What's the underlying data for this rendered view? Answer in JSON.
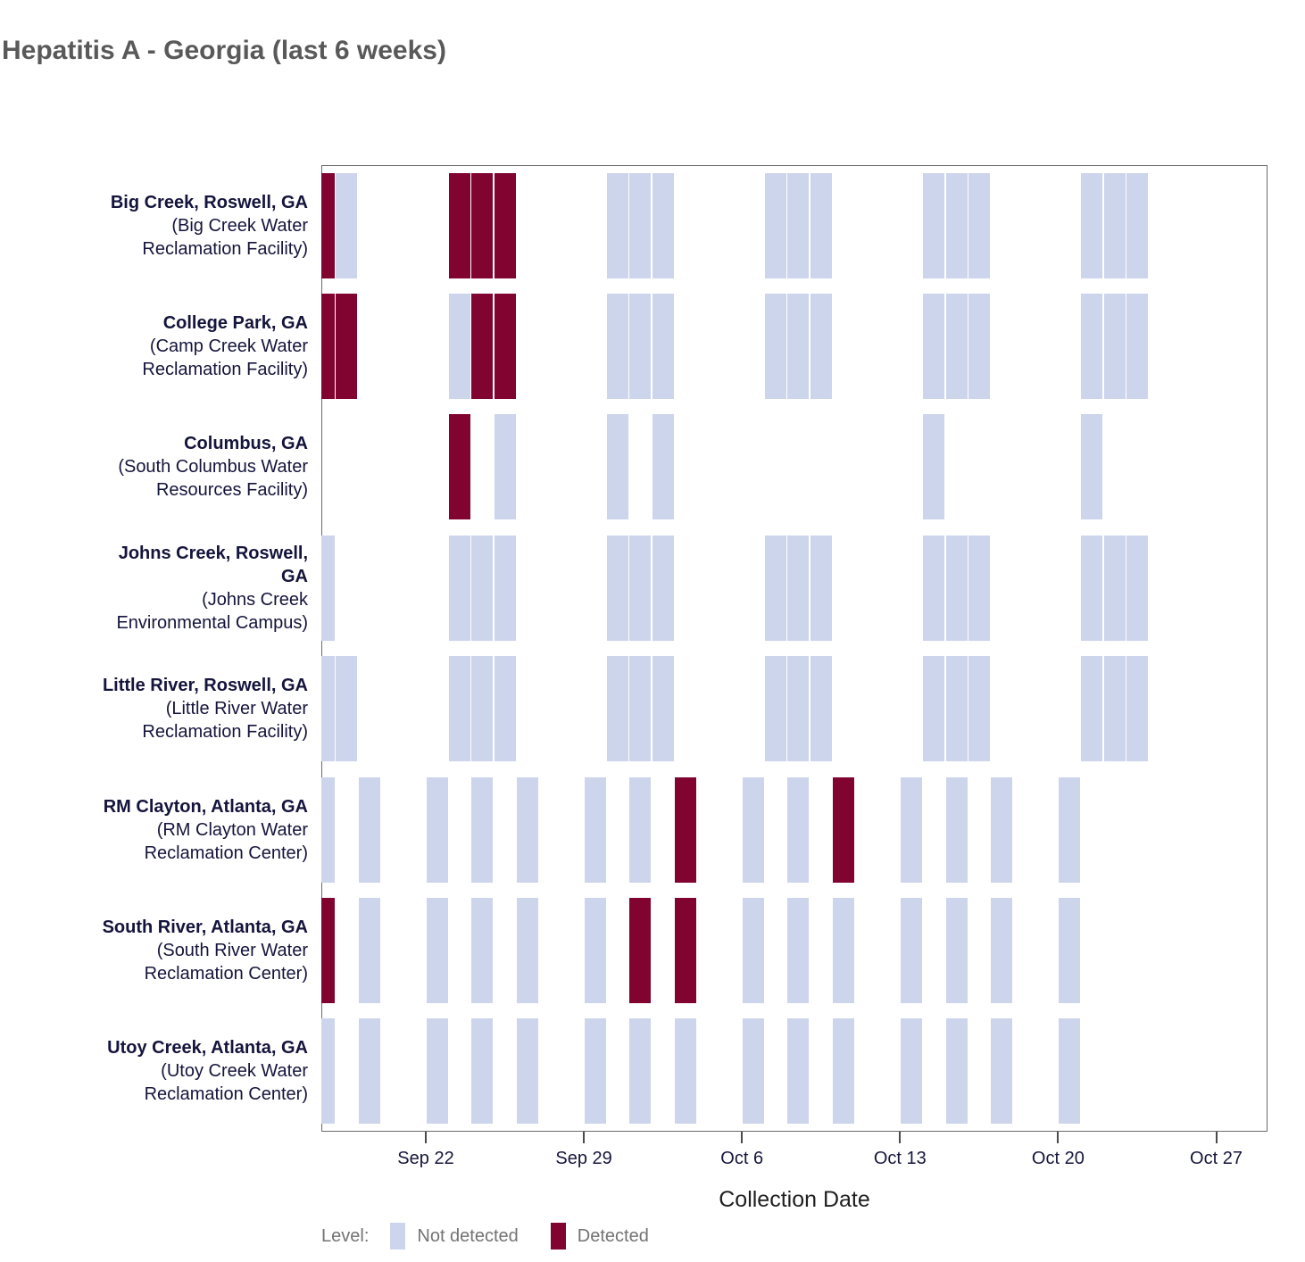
{
  "title": "Hepatitis A - Georgia (last 6 weeks)",
  "axis": {
    "x_title": "Collection Date",
    "x_ticks": [
      {
        "label": "Sep 22",
        "day": 0
      },
      {
        "label": "Sep 29",
        "day": 7
      },
      {
        "label": "Oct 6",
        "day": 14
      },
      {
        "label": "Oct 13",
        "day": 21
      },
      {
        "label": "Oct 20",
        "day": 28
      },
      {
        "label": "Oct 27",
        "day": 35
      }
    ]
  },
  "legend": {
    "label": "Level:",
    "items": [
      {
        "label": "Not detected",
        "key": "not_detected",
        "color": "#cdd5ec"
      },
      {
        "label": "Detected",
        "key": "detected",
        "color": "#800330"
      }
    ]
  },
  "colors": {
    "detected": "#800330",
    "not_detected": "#cdd5ec",
    "title_text": "#595959",
    "axis_text": "#16163c",
    "label_text": "#14143c",
    "legend_text": "#737373",
    "panel_border": "#6b6b6b"
  },
  "chart_data": {
    "type": "heatmap",
    "title": "Hepatitis A - Georgia (last 6 weeks)",
    "xlabel": "Collection Date",
    "x_tick_labels": [
      "Sep 22",
      "Sep 29",
      "Oct 6",
      "Oct 13",
      "Oct 20",
      "Oct 27"
    ],
    "x_range": [
      "Sep 17",
      "Oct 29"
    ],
    "legend_title": "Level:",
    "levels": [
      "Not detected",
      "Detected"
    ],
    "grid": false,
    "legend_position": "bottom",
    "facilities": [
      {
        "name": "Big Creek, Roswell, GA",
        "facility": "(Big Creek Water Reclamation Facility)",
        "name_lines": [
          "Big Creek, Roswell, GA"
        ],
        "facility_lines": [
          "(Big Creek Water",
          "Reclamation Facility)"
        ],
        "samples": [
          {
            "date": "Sep 17",
            "day": -5,
            "detected": true
          },
          {
            "date": "Sep 18",
            "day": -4,
            "detected": false
          },
          {
            "date": "Sep 23",
            "day": 1,
            "detected": true
          },
          {
            "date": "Sep 24",
            "day": 2,
            "detected": true
          },
          {
            "date": "Sep 25",
            "day": 3,
            "detected": true
          },
          {
            "date": "Sep 30",
            "day": 8,
            "detected": false
          },
          {
            "date": "Oct 1",
            "day": 9,
            "detected": false
          },
          {
            "date": "Oct 2",
            "day": 10,
            "detected": false
          },
          {
            "date": "Oct 7",
            "day": 15,
            "detected": false
          },
          {
            "date": "Oct 8",
            "day": 16,
            "detected": false
          },
          {
            "date": "Oct 9",
            "day": 17,
            "detected": false
          },
          {
            "date": "Oct 14",
            "day": 22,
            "detected": false
          },
          {
            "date": "Oct 15",
            "day": 23,
            "detected": false
          },
          {
            "date": "Oct 16",
            "day": 24,
            "detected": false
          },
          {
            "date": "Oct 21",
            "day": 29,
            "detected": false
          },
          {
            "date": "Oct 22",
            "day": 30,
            "detected": false
          },
          {
            "date": "Oct 23",
            "day": 31,
            "detected": false
          }
        ]
      },
      {
        "name": "College Park, GA",
        "facility": "(Camp Creek Water Reclamation Facility)",
        "name_lines": [
          "College Park, GA"
        ],
        "facility_lines": [
          "(Camp Creek Water",
          "Reclamation Facility)"
        ],
        "samples": [
          {
            "date": "Sep 17",
            "day": -5,
            "detected": true
          },
          {
            "date": "Sep 18",
            "day": -4,
            "detected": true
          },
          {
            "date": "Sep 23",
            "day": 1,
            "detected": false
          },
          {
            "date": "Sep 24",
            "day": 2,
            "detected": true
          },
          {
            "date": "Sep 25",
            "day": 3,
            "detected": true
          },
          {
            "date": "Sep 30",
            "day": 8,
            "detected": false
          },
          {
            "date": "Oct 1",
            "day": 9,
            "detected": false
          },
          {
            "date": "Oct 2",
            "day": 10,
            "detected": false
          },
          {
            "date": "Oct 7",
            "day": 15,
            "detected": false
          },
          {
            "date": "Oct 8",
            "day": 16,
            "detected": false
          },
          {
            "date": "Oct 9",
            "day": 17,
            "detected": false
          },
          {
            "date": "Oct 14",
            "day": 22,
            "detected": false
          },
          {
            "date": "Oct 15",
            "day": 23,
            "detected": false
          },
          {
            "date": "Oct 16",
            "day": 24,
            "detected": false
          },
          {
            "date": "Oct 21",
            "day": 29,
            "detected": false
          },
          {
            "date": "Oct 22",
            "day": 30,
            "detected": false
          },
          {
            "date": "Oct 23",
            "day": 31,
            "detected": false
          }
        ]
      },
      {
        "name": "Columbus, GA",
        "facility": "(South Columbus Water Resources Facility)",
        "name_lines": [
          "Columbus, GA"
        ],
        "facility_lines": [
          "(South Columbus Water",
          "Resources Facility)"
        ],
        "samples": [
          {
            "date": "Sep 23",
            "day": 1,
            "detected": true
          },
          {
            "date": "Sep 25",
            "day": 3,
            "detected": false
          },
          {
            "date": "Sep 30",
            "day": 8,
            "detected": false
          },
          {
            "date": "Oct 2",
            "day": 10,
            "detected": false
          },
          {
            "date": "Oct 14",
            "day": 22,
            "detected": false
          },
          {
            "date": "Oct 21",
            "day": 29,
            "detected": false
          }
        ]
      },
      {
        "name": "Johns Creek, Roswell, GA",
        "facility": "(Johns Creek Environmental Campus)",
        "name_lines": [
          "Johns Creek, Roswell,",
          "GA"
        ],
        "facility_lines": [
          "(Johns Creek",
          "Environmental Campus)"
        ],
        "samples": [
          {
            "date": "Sep 17",
            "day": -5,
            "detected": false
          },
          {
            "date": "Sep 23",
            "day": 1,
            "detected": false
          },
          {
            "date": "Sep 24",
            "day": 2,
            "detected": false
          },
          {
            "date": "Sep 25",
            "day": 3,
            "detected": false
          },
          {
            "date": "Sep 30",
            "day": 8,
            "detected": false
          },
          {
            "date": "Oct 1",
            "day": 9,
            "detected": false
          },
          {
            "date": "Oct 2",
            "day": 10,
            "detected": false
          },
          {
            "date": "Oct 7",
            "day": 15,
            "detected": false
          },
          {
            "date": "Oct 8",
            "day": 16,
            "detected": false
          },
          {
            "date": "Oct 9",
            "day": 17,
            "detected": false
          },
          {
            "date": "Oct 14",
            "day": 22,
            "detected": false
          },
          {
            "date": "Oct 15",
            "day": 23,
            "detected": false
          },
          {
            "date": "Oct 16",
            "day": 24,
            "detected": false
          },
          {
            "date": "Oct 21",
            "day": 29,
            "detected": false
          },
          {
            "date": "Oct 22",
            "day": 30,
            "detected": false
          },
          {
            "date": "Oct 23",
            "day": 31,
            "detected": false
          }
        ]
      },
      {
        "name": "Little River, Roswell, GA",
        "facility": "(Little River Water Reclamation Facility)",
        "name_lines": [
          "Little River, Roswell, GA"
        ],
        "facility_lines": [
          "(Little River Water",
          "Reclamation Facility)"
        ],
        "samples": [
          {
            "date": "Sep 17",
            "day": -5,
            "detected": false
          },
          {
            "date": "Sep 18",
            "day": -4,
            "detected": false
          },
          {
            "date": "Sep 23",
            "day": 1,
            "detected": false
          },
          {
            "date": "Sep 24",
            "day": 2,
            "detected": false
          },
          {
            "date": "Sep 25",
            "day": 3,
            "detected": false
          },
          {
            "date": "Sep 30",
            "day": 8,
            "detected": false
          },
          {
            "date": "Oct 1",
            "day": 9,
            "detected": false
          },
          {
            "date": "Oct 2",
            "day": 10,
            "detected": false
          },
          {
            "date": "Oct 7",
            "day": 15,
            "detected": false
          },
          {
            "date": "Oct 8",
            "day": 16,
            "detected": false
          },
          {
            "date": "Oct 9",
            "day": 17,
            "detected": false
          },
          {
            "date": "Oct 14",
            "day": 22,
            "detected": false
          },
          {
            "date": "Oct 15",
            "day": 23,
            "detected": false
          },
          {
            "date": "Oct 16",
            "day": 24,
            "detected": false
          },
          {
            "date": "Oct 21",
            "day": 29,
            "detected": false
          },
          {
            "date": "Oct 22",
            "day": 30,
            "detected": false
          },
          {
            "date": "Oct 23",
            "day": 31,
            "detected": false
          }
        ]
      },
      {
        "name": "RM Clayton, Atlanta, GA",
        "facility": "(RM Clayton Water Reclamation Center)",
        "name_lines": [
          "RM Clayton, Atlanta, GA"
        ],
        "facility_lines": [
          "(RM Clayton Water",
          "Reclamation Center)"
        ],
        "samples": [
          {
            "date": "Sep 17",
            "day": -5,
            "detected": false
          },
          {
            "date": "Sep 19",
            "day": -3,
            "detected": false
          },
          {
            "date": "Sep 22",
            "day": 0,
            "detected": false
          },
          {
            "date": "Sep 24",
            "day": 2,
            "detected": false
          },
          {
            "date": "Sep 26",
            "day": 4,
            "detected": false
          },
          {
            "date": "Sep 29",
            "day": 7,
            "detected": false
          },
          {
            "date": "Oct 1",
            "day": 9,
            "detected": false
          },
          {
            "date": "Oct 3",
            "day": 11,
            "detected": true
          },
          {
            "date": "Oct 6",
            "day": 14,
            "detected": false
          },
          {
            "date": "Oct 8",
            "day": 16,
            "detected": false
          },
          {
            "date": "Oct 10",
            "day": 18,
            "detected": true
          },
          {
            "date": "Oct 13",
            "day": 21,
            "detected": false
          },
          {
            "date": "Oct 15",
            "day": 23,
            "detected": false
          },
          {
            "date": "Oct 17",
            "day": 25,
            "detected": false
          },
          {
            "date": "Oct 20",
            "day": 28,
            "detected": false
          }
        ]
      },
      {
        "name": "South River, Atlanta, GA",
        "facility": "(South River Water Reclamation Center)",
        "name_lines": [
          "South River, Atlanta, GA"
        ],
        "facility_lines": [
          "(South River Water",
          "Reclamation Center)"
        ],
        "samples": [
          {
            "date": "Sep 17",
            "day": -5,
            "detected": true
          },
          {
            "date": "Sep 19",
            "day": -3,
            "detected": false
          },
          {
            "date": "Sep 22",
            "day": 0,
            "detected": false
          },
          {
            "date": "Sep 24",
            "day": 2,
            "detected": false
          },
          {
            "date": "Sep 26",
            "day": 4,
            "detected": false
          },
          {
            "date": "Sep 29",
            "day": 7,
            "detected": false
          },
          {
            "date": "Oct 1",
            "day": 9,
            "detected": true
          },
          {
            "date": "Oct 3",
            "day": 11,
            "detected": true
          },
          {
            "date": "Oct 6",
            "day": 14,
            "detected": false
          },
          {
            "date": "Oct 8",
            "day": 16,
            "detected": false
          },
          {
            "date": "Oct 10",
            "day": 18,
            "detected": false
          },
          {
            "date": "Oct 13",
            "day": 21,
            "detected": false
          },
          {
            "date": "Oct 15",
            "day": 23,
            "detected": false
          },
          {
            "date": "Oct 17",
            "day": 25,
            "detected": false
          },
          {
            "date": "Oct 20",
            "day": 28,
            "detected": false
          }
        ]
      },
      {
        "name": "Utoy Creek, Atlanta, GA",
        "facility": "(Utoy Creek Water Reclamation Center)",
        "name_lines": [
          "Utoy Creek, Atlanta, GA"
        ],
        "facility_lines": [
          "(Utoy Creek Water",
          "Reclamation Center)"
        ],
        "samples": [
          {
            "date": "Sep 17",
            "day": -5,
            "detected": false
          },
          {
            "date": "Sep 19",
            "day": -3,
            "detected": false
          },
          {
            "date": "Sep 22",
            "day": 0,
            "detected": false
          },
          {
            "date": "Sep 24",
            "day": 2,
            "detected": false
          },
          {
            "date": "Sep 26",
            "day": 4,
            "detected": false
          },
          {
            "date": "Sep 29",
            "day": 7,
            "detected": false
          },
          {
            "date": "Oct 1",
            "day": 9,
            "detected": false
          },
          {
            "date": "Oct 3",
            "day": 11,
            "detected": false
          },
          {
            "date": "Oct 6",
            "day": 14,
            "detected": false
          },
          {
            "date": "Oct 8",
            "day": 16,
            "detected": false
          },
          {
            "date": "Oct 10",
            "day": 18,
            "detected": false
          },
          {
            "date": "Oct 13",
            "day": 21,
            "detected": false
          },
          {
            "date": "Oct 15",
            "day": 23,
            "detected": false
          },
          {
            "date": "Oct 17",
            "day": 25,
            "detected": false
          },
          {
            "date": "Oct 20",
            "day": 28,
            "detected": false
          }
        ]
      }
    ]
  }
}
